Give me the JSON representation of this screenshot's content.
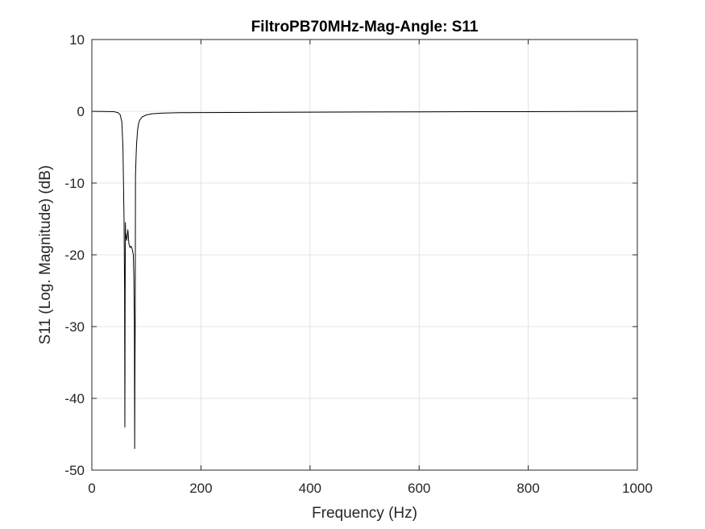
{
  "chart_data": {
    "type": "line",
    "title": "FiltroPB70MHz-Mag-Angle: S11",
    "xlabel": "Frequency (Hz)",
    "ylabel": "S11 (Log. Magnitude) (dB)",
    "xlim": [
      0,
      1000
    ],
    "ylim": [
      -50,
      10
    ],
    "xticks": [
      0,
      200,
      400,
      600,
      800,
      1000
    ],
    "yticks": [
      -50,
      -40,
      -30,
      -20,
      -10,
      0,
      10
    ],
    "grid": true,
    "series": [
      {
        "color": "#000000",
        "x": [
          0,
          20,
          40,
          48,
          52,
          55,
          57,
          59,
          60,
          60.5,
          61,
          61.5,
          62,
          64,
          66,
          68,
          70,
          72,
          74,
          76,
          77,
          78,
          78.5,
          79,
          79.5,
          80,
          81,
          82,
          84,
          86,
          88,
          92,
          100,
          110,
          130,
          160,
          200,
          300,
          400,
          500,
          600,
          700,
          800,
          900,
          1000
        ],
        "y": [
          -0.02,
          -0.03,
          -0.05,
          -0.2,
          -0.5,
          -1.5,
          -5,
          -15,
          -25,
          -44,
          -26,
          -15.5,
          -17,
          -18,
          -16.5,
          -18.5,
          -19,
          -18.8,
          -19.2,
          -20,
          -23,
          -30,
          -47,
          -36,
          -29,
          -9,
          -6.5,
          -4.5,
          -2.5,
          -1.6,
          -1.2,
          -0.8,
          -0.5,
          -0.35,
          -0.25,
          -0.2,
          -0.18,
          -0.15,
          -0.12,
          -0.1,
          -0.08,
          -0.06,
          -0.05,
          -0.03,
          -0.02
        ]
      }
    ]
  }
}
